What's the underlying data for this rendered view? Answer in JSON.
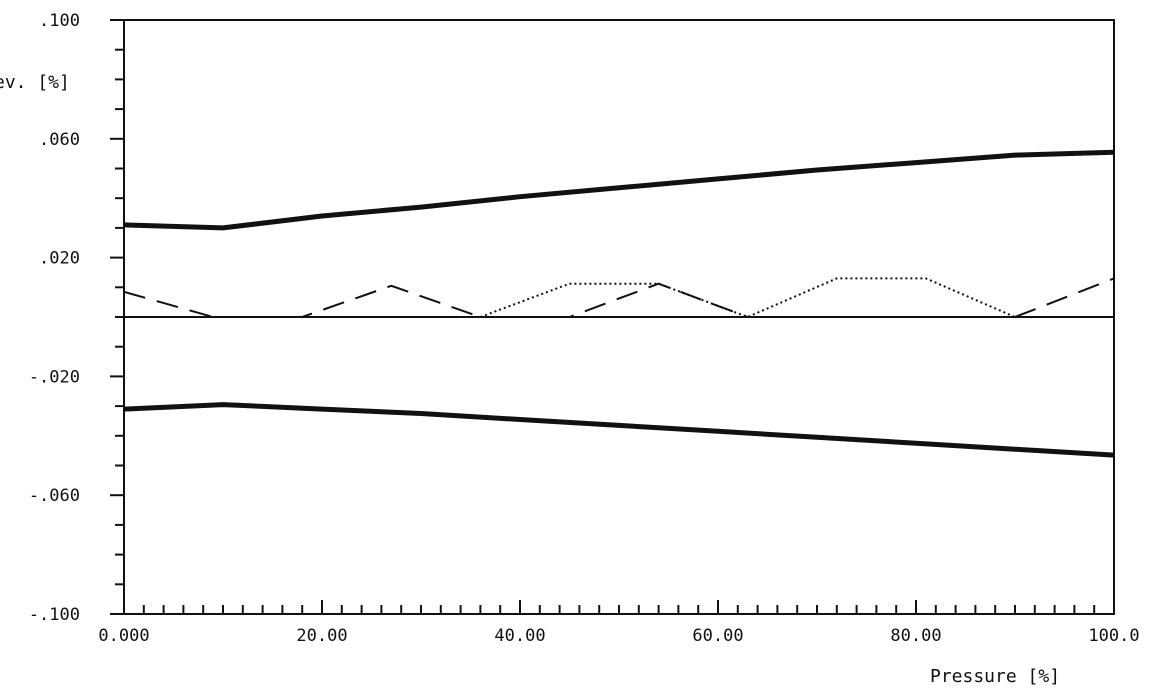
{
  "chart_data": {
    "type": "line",
    "title": "",
    "xlabel": "Pressure [%]",
    "ylabel": "ev. [%]",
    "xlim": [
      0,
      100
    ],
    "ylim": [
      -0.1,
      0.1
    ],
    "x_ticks": [
      0,
      20,
      40,
      60,
      80,
      100
    ],
    "x_tick_labels": [
      "0.000",
      "20.00",
      "40.00",
      "60.00",
      "80.00",
      "100.0"
    ],
    "y_ticks": [
      0.1,
      0.06,
      0.02,
      -0.02,
      -0.06,
      -0.1
    ],
    "y_tick_labels": [
      ".100",
      ".060",
      ".020",
      "-.020",
      "-.060",
      "-.100"
    ],
    "grid": false,
    "legend": "none",
    "series": [
      {
        "style": "thick-solid",
        "x": [
          0,
          10,
          20,
          30,
          40,
          50,
          60,
          70,
          80,
          90,
          100
        ],
        "y": [
          0.031,
          0.03,
          0.034,
          0.037,
          0.0405,
          0.0435,
          0.0465,
          0.0495,
          0.052,
          0.0545,
          0.0555
        ]
      },
      {
        "style": "thick-solid",
        "x": [
          0,
          10,
          20,
          30,
          40,
          50,
          60,
          70,
          80,
          90,
          100
        ],
        "y": [
          -0.031,
          -0.0295,
          -0.031,
          -0.0325,
          -0.0345,
          -0.0365,
          -0.0385,
          -0.0405,
          -0.0425,
          -0.0445,
          -0.0465
        ]
      },
      {
        "style": "thin-solid",
        "x": [
          0,
          100
        ],
        "y": [
          0.0,
          0.0
        ]
      },
      {
        "style": "dashed",
        "x": [
          0,
          9,
          18,
          27,
          36,
          45,
          54,
          63
        ],
        "y": [
          0.0085,
          0.0,
          0.0,
          0.0105,
          0.0,
          0.0,
          0.0112,
          0.0
        ]
      },
      {
        "style": "dotted",
        "x": [
          36,
          45,
          54,
          63,
          72,
          81,
          90
        ],
        "y": [
          0.0,
          0.0112,
          0.0112,
          0.0,
          0.013,
          0.013,
          0.0
        ]
      },
      {
        "style": "dashed",
        "x": [
          90,
          100
        ],
        "y": [
          0.0,
          0.013
        ]
      }
    ]
  }
}
